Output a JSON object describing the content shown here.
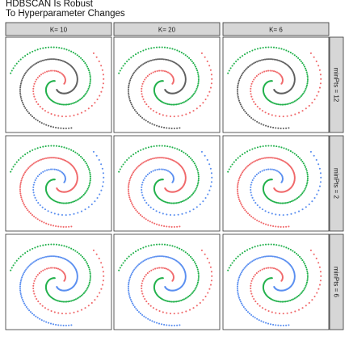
{
  "chart_data": {
    "type": "scatter",
    "title": "HDBSCAN Is Robust",
    "subtitle": "To Hyperparameter Changes",
    "facet_columns": [
      "K= 10",
      "K= 20",
      "K= 6"
    ],
    "facet_rows": [
      "minPts = 12",
      "minPts = 2",
      "minPts = 6"
    ],
    "xlim": [
      -1.2,
      1.2
    ],
    "ylim": [
      -1.2,
      1.2
    ],
    "grid": false,
    "axis_ticks": false,
    "cluster_colors": {
      "noise": "#606060",
      "red": "#f0696b",
      "green": "#22b14c",
      "blue": "#5b8ff0"
    },
    "spirals": [
      {
        "name": "inner",
        "angle_offset_deg": 0,
        "n_points": 65
      },
      {
        "name": "middle",
        "angle_offset_deg": 120,
        "n_points": 110
      },
      {
        "name": "outer",
        "angle_offset_deg": 240,
        "n_points": 130
      }
    ],
    "panels": [
      {
        "row": 0,
        "col": 0,
        "assignment": {
          "inner": "red",
          "middle": "green",
          "outer": "noise"
        }
      },
      {
        "row": 0,
        "col": 1,
        "assignment": {
          "inner": "red",
          "middle": "green",
          "outer": "noise"
        }
      },
      {
        "row": 0,
        "col": 2,
        "assignment": {
          "inner": "red",
          "middle": "green",
          "outer": "noise"
        }
      },
      {
        "row": 1,
        "col": 0,
        "assignment": {
          "inner": "blue",
          "middle": "green",
          "outer": "red"
        }
      },
      {
        "row": 1,
        "col": 1,
        "assignment": {
          "inner": "blue",
          "middle": "green",
          "outer": "red"
        }
      },
      {
        "row": 1,
        "col": 2,
        "assignment": {
          "inner": "blue",
          "middle": "green",
          "outer": "red"
        }
      },
      {
        "row": 2,
        "col": 0,
        "assignment": {
          "inner": "red",
          "middle": "green",
          "outer": "blue"
        }
      },
      {
        "row": 2,
        "col": 1,
        "assignment": {
          "inner": "red",
          "middle": "green",
          "outer": "blue"
        }
      },
      {
        "row": 2,
        "col": 2,
        "assignment": {
          "inner": "red",
          "middle": "green",
          "outer": "blue"
        }
      }
    ]
  }
}
